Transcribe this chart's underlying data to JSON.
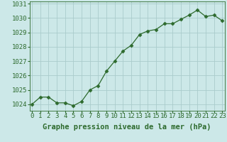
{
  "x": [
    0,
    1,
    2,
    3,
    4,
    5,
    6,
    7,
    8,
    9,
    10,
    11,
    12,
    13,
    14,
    15,
    16,
    17,
    18,
    19,
    20,
    21,
    22,
    23
  ],
  "y": [
    1024.0,
    1024.5,
    1024.5,
    1024.1,
    1024.1,
    1023.9,
    1024.2,
    1025.0,
    1025.3,
    1026.3,
    1027.0,
    1027.7,
    1028.1,
    1028.85,
    1029.1,
    1029.2,
    1029.6,
    1029.6,
    1029.9,
    1030.2,
    1030.55,
    1030.1,
    1030.2,
    1029.8
  ],
  "line_color": "#2d6a2d",
  "marker_color": "#2d6a2d",
  "bg_color": "#cce8e8",
  "grid_color": "#aacccc",
  "xlabel": "Graphe pression niveau de la mer (hPa)",
  "xlabel_color": "#2d6a2d",
  "tick_color": "#2d6a2d",
  "ylabel_ticks": [
    1024,
    1025,
    1026,
    1027,
    1028,
    1029,
    1030,
    1031
  ],
  "ylim": [
    1023.55,
    1031.15
  ],
  "xlim": [
    -0.3,
    23.3
  ],
  "tick_fontsize": 6.5,
  "xlabel_fontsize": 7.5
}
